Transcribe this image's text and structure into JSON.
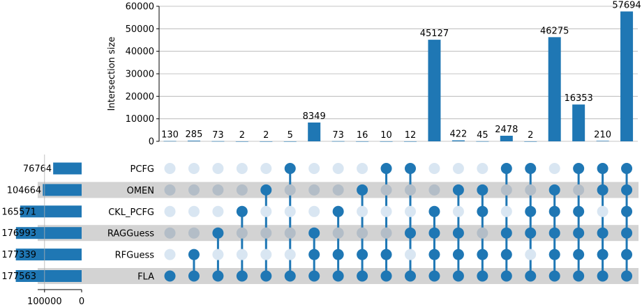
{
  "chart_data": {
    "type": "upset",
    "ylabel": "Intersection size",
    "ylim": [
      0,
      60000
    ],
    "yticks": [
      "0",
      "10000",
      "20000",
      "30000",
      "40000",
      "50000",
      "60000"
    ],
    "sets": [
      {
        "name": "PCFG",
        "size": 76764
      },
      {
        "name": "OMEN",
        "size": 104664
      },
      {
        "name": "CKL_PCFG",
        "size": 165571
      },
      {
        "name": "RAGGuess",
        "size": 176993
      },
      {
        "name": "RFGuess",
        "size": 177339
      },
      {
        "name": "FLA",
        "size": 177563
      }
    ],
    "set_size_xlim": [
      0,
      220000
    ],
    "set_size_ticks": [
      "100000",
      "0"
    ],
    "intersections": [
      {
        "value": 130,
        "label": "130",
        "members": [
          "FLA"
        ]
      },
      {
        "value": 285,
        "label": "285",
        "members": [
          "RFGuess",
          "FLA"
        ]
      },
      {
        "value": 73,
        "label": "73",
        "members": [
          "RAGGuess",
          "FLA"
        ]
      },
      {
        "value": 2,
        "label": "2",
        "members": [
          "CKL_PCFG",
          "FLA"
        ]
      },
      {
        "value": 2,
        "label": "2",
        "members": [
          "OMEN",
          "FLA"
        ]
      },
      {
        "value": 5,
        "label": "5",
        "members": [
          "PCFG",
          "FLA"
        ]
      },
      {
        "value": 8349,
        "label": "8349",
        "members": [
          "RAGGuess",
          "RFGuess",
          "FLA"
        ]
      },
      {
        "value": 73,
        "label": "73",
        "members": [
          "CKL_PCFG",
          "RFGuess",
          "FLA"
        ]
      },
      {
        "value": 16,
        "label": "16",
        "members": [
          "OMEN",
          "RFGuess",
          "FLA"
        ]
      },
      {
        "value": 10,
        "label": "10",
        "members": [
          "PCFG",
          "RFGuess",
          "FLA"
        ]
      },
      {
        "value": 12,
        "label": "12",
        "members": [
          "PCFG",
          "RAGGuess",
          "FLA"
        ]
      },
      {
        "value": 45127,
        "label": "45127",
        "members": [
          "CKL_PCFG",
          "RAGGuess",
          "RFGuess",
          "FLA"
        ]
      },
      {
        "value": 422,
        "label": "422",
        "members": [
          "OMEN",
          "RAGGuess",
          "RFGuess",
          "FLA"
        ]
      },
      {
        "value": 45,
        "label": "45",
        "members": [
          "OMEN",
          "CKL_PCFG",
          "RFGuess",
          "FLA"
        ]
      },
      {
        "value": 2478,
        "label": "2478",
        "members": [
          "PCFG",
          "RAGGuess",
          "RFGuess",
          "FLA"
        ]
      },
      {
        "value": 2,
        "label": "2",
        "members": [
          "PCFG",
          "CKL_PCFG",
          "RAGGuess",
          "FLA"
        ]
      },
      {
        "value": 46275,
        "label": "46275",
        "members": [
          "OMEN",
          "CKL_PCFG",
          "RAGGuess",
          "RFGuess",
          "FLA"
        ]
      },
      {
        "value": 16353,
        "label": "16353",
        "members": [
          "PCFG",
          "CKL_PCFG",
          "RAGGuess",
          "RFGuess",
          "FLA"
        ]
      },
      {
        "value": 210,
        "label": "210",
        "members": [
          "PCFG",
          "OMEN",
          "RAGGuess",
          "RFGuess",
          "FLA"
        ]
      },
      {
        "value": 57694,
        "label": "57694",
        "members": [
          "PCFG",
          "OMEN",
          "CKL_PCFG",
          "RAGGuess",
          "RFGuess",
          "FLA"
        ]
      }
    ],
    "grid": true,
    "colors": {
      "bar": "#1f77b4",
      "dot_active": "#1f77b4",
      "dot_inactive_light": "#d9e6f2",
      "dot_inactive_dark": "#b3bdc7",
      "stripe": "#d3d3d3",
      "grid": "#b0b0b0"
    }
  }
}
